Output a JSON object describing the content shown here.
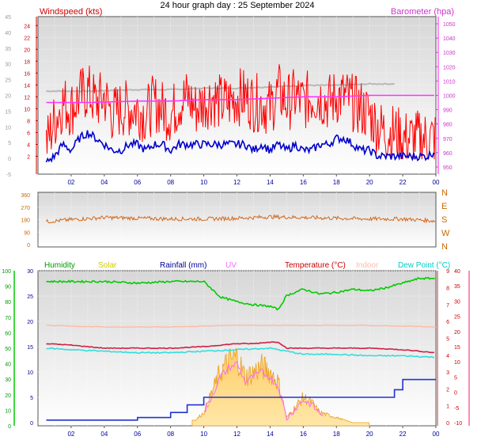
{
  "title": "24 hour graph day : 25 September 2024",
  "x_ticks": [
    "02",
    "04",
    "06",
    "08",
    "10",
    "12",
    "14",
    "16",
    "18",
    "20",
    "22",
    "00"
  ],
  "wind_panel": {
    "label_left": "Windspeed (kts)",
    "label_right": "Barometer (hpa)",
    "ticks_outer": [
      "-5",
      "0",
      "5",
      "10",
      "15",
      "20",
      "25",
      "30",
      "35",
      "40",
      "45"
    ],
    "ticks_inner": [
      "2",
      "4",
      "6",
      "8",
      "10",
      "12",
      "14",
      "16",
      "18",
      "20",
      "22",
      "24"
    ],
    "ticks_baro": [
      "950",
      "960",
      "970",
      "980",
      "990",
      "1000",
      "1010",
      "1020",
      "1030",
      "1040",
      "1050"
    ],
    "colors": {
      "gust": "#ff0000",
      "avg": "#0000cc",
      "baro": "#ff33ff",
      "grey": "#b8b8b8"
    }
  },
  "dir_panel": {
    "ticks": [
      "0",
      "90",
      "180",
      "270",
      "360"
    ],
    "compass": [
      "N",
      "W",
      "S",
      "E",
      "N"
    ],
    "color": "#d2691e"
  },
  "multi_panel": {
    "legend": [
      {
        "label": "Humidity",
        "color": "#009900"
      },
      {
        "label": "Solar",
        "color": "#cccc00"
      },
      {
        "label": "Rainfall (mm)",
        "color": "#000099"
      },
      {
        "label": "UV",
        "color": "#ff66ff"
      },
      {
        "label": "Temperature (°C)",
        "color": "#cc0000"
      },
      {
        "label": "Indoor",
        "color": "#ffbbaa"
      },
      {
        "label": "Dew Point (°C)",
        "color": "#00cccc"
      }
    ],
    "ticks_humidity": [
      "0",
      "10",
      "20",
      "30",
      "40",
      "50",
      "60",
      "70",
      "80",
      "90",
      "100"
    ],
    "ticks_rain": [
      "0",
      "5",
      "10",
      "15",
      "20",
      "25",
      "30"
    ],
    "ticks_uv": [
      "0",
      "1",
      "2",
      "3",
      "4",
      "5",
      "6",
      "7",
      "8",
      "9"
    ],
    "ticks_temp": [
      "-10",
      "-5",
      "0",
      "5",
      "10",
      "15",
      "20",
      "25",
      "30",
      "35",
      "40"
    ]
  },
  "chart_data": [
    {
      "type": "line",
      "title": "24 hour graph day : 25 September 2024",
      "x_range_hours": [
        0,
        24
      ],
      "series": [
        {
          "name": "Windspeed (kts)",
          "points_hour": [
            0.5,
            1,
            1.5,
            2,
            2.5,
            3,
            3.5,
            4,
            4.5,
            5,
            5.5,
            6,
            6.5,
            7,
            7.5,
            8,
            8.5,
            9,
            9.5,
            10,
            10.5,
            11,
            11.5,
            12,
            12.5,
            13,
            13.5,
            14,
            14.5,
            15,
            15.5,
            16,
            16.5,
            17,
            17.5,
            18,
            18.5,
            19,
            19.5,
            20,
            20.5,
            21,
            21.5,
            22,
            22.5,
            23,
            23.5,
            24
          ],
          "values": [
            4,
            8,
            11,
            10,
            12,
            13,
            11,
            12,
            9,
            10,
            10,
            10,
            9,
            11,
            10,
            9,
            11,
            12,
            10,
            11,
            12,
            11,
            11,
            12,
            12,
            11,
            11,
            10,
            13,
            11,
            12,
            11,
            12,
            12,
            11,
            12,
            12,
            11,
            10,
            9,
            7,
            6,
            6,
            5,
            5,
            5,
            5,
            5
          ]
        },
        {
          "name": "Wind avg (kts)",
          "points_hour": [
            0.5,
            1,
            1.5,
            2,
            2.5,
            3,
            3.5,
            4,
            4.5,
            5,
            5.5,
            6,
            6.5,
            7,
            7.5,
            8,
            8.5,
            9,
            9.5,
            10,
            10.5,
            11,
            11.5,
            12,
            12.5,
            13,
            13.5,
            14,
            14.5,
            15,
            15.5,
            16,
            16.5,
            17,
            17.5,
            18,
            18.5,
            19,
            19.5,
            20,
            20.5,
            21,
            21.5,
            22,
            22.5,
            23,
            23.5,
            24
          ],
          "values": [
            1,
            2,
            4,
            3,
            5,
            6,
            5,
            4,
            3,
            3,
            4,
            4,
            3,
            4,
            4,
            3,
            4,
            4,
            4,
            4,
            4,
            4,
            4,
            4,
            4,
            3,
            4,
            3,
            4,
            3,
            4,
            3,
            3,
            4,
            4,
            5,
            5,
            4,
            3,
            3,
            2,
            2,
            2,
            2,
            2,
            2,
            2,
            3
          ]
        },
        {
          "name": "Barometer (hpa)",
          "points_hour": [
            0.5,
            3,
            6,
            8,
            10,
            12,
            14,
            16,
            18,
            20,
            22,
            24
          ],
          "values": [
            995,
            995,
            996,
            996,
            997,
            997,
            998,
            999,
            999,
            1000,
            1000,
            1000
          ]
        }
      ]
    },
    {
      "type": "line",
      "ylim": [
        0,
        360
      ],
      "series": [
        {
          "name": "Wind direction",
          "points_hour": [
            0.5,
            2,
            4,
            6,
            8,
            10,
            12,
            14,
            16,
            18,
            20,
            22,
            24
          ],
          "values": [
            165,
            180,
            195,
            190,
            185,
            185,
            190,
            200,
            195,
            190,
            185,
            185,
            170
          ]
        }
      ]
    },
    {
      "type": "line",
      "series": [
        {
          "name": "Humidity",
          "axis": "humidity",
          "points_hour": [
            0.5,
            2,
            4,
            6,
            8,
            10,
            10.5,
            11,
            12,
            13,
            14,
            14.5,
            15,
            16,
            17,
            18,
            19,
            20,
            21,
            22,
            23,
            24
          ],
          "values": [
            93,
            93,
            93,
            92,
            93,
            93,
            88,
            83,
            80,
            78,
            77,
            75,
            84,
            88,
            85,
            86,
            88,
            87,
            89,
            92,
            95,
            95
          ]
        },
        {
          "name": "Indoor",
          "axis": "temp",
          "points_hour": [
            0.5,
            4,
            8,
            12,
            16,
            20,
            24
          ],
          "values": [
            22,
            21.5,
            21.5,
            22,
            22,
            22,
            21.5
          ]
        },
        {
          "name": "Temperature (°C)",
          "axis": "temp",
          "points_hour": [
            0.5,
            2,
            4,
            6,
            8,
            10,
            12,
            13,
            14,
            14.5,
            15,
            16,
            18,
            20,
            22,
            24
          ],
          "values": [
            16,
            15.5,
            14.5,
            14.5,
            14.5,
            15,
            16,
            16,
            16.5,
            16.5,
            14.5,
            14.5,
            14.5,
            14.5,
            14,
            13
          ]
        },
        {
          "name": "Dew Point (°C)",
          "axis": "temp",
          "points_hour": [
            0.5,
            2,
            4,
            6,
            8,
            10,
            12,
            14,
            15,
            16,
            18,
            20,
            22,
            24
          ],
          "values": [
            14.5,
            14,
            13.5,
            13,
            13,
            13.5,
            14,
            14.5,
            13.5,
            12.5,
            12.5,
            12,
            12,
            11.5
          ]
        },
        {
          "name": "Solar",
          "axis": "rain",
          "points_hour": [
            9.5,
            10,
            10.5,
            11,
            11.5,
            12,
            12.5,
            13,
            13.5,
            14,
            14.5,
            15,
            15.5,
            16,
            16.5,
            17,
            18,
            19,
            20
          ],
          "values": [
            0.5,
            2,
            6,
            10,
            12,
            13,
            9,
            10,
            11,
            10,
            8,
            1,
            3,
            5,
            4,
            2,
            1,
            0,
            0
          ]
        },
        {
          "name": "Rainfall (mm)",
          "axis": "rain",
          "points_hour": [
            0.5,
            6,
            8,
            9,
            10,
            12,
            14,
            16,
            18,
            20,
            21,
            21.5,
            22,
            24
          ],
          "values": [
            0.5,
            1,
            2,
            3.5,
            5,
            5,
            5,
            5,
            5,
            5,
            5,
            6.5,
            8.5,
            8.5
          ]
        }
      ]
    }
  ]
}
